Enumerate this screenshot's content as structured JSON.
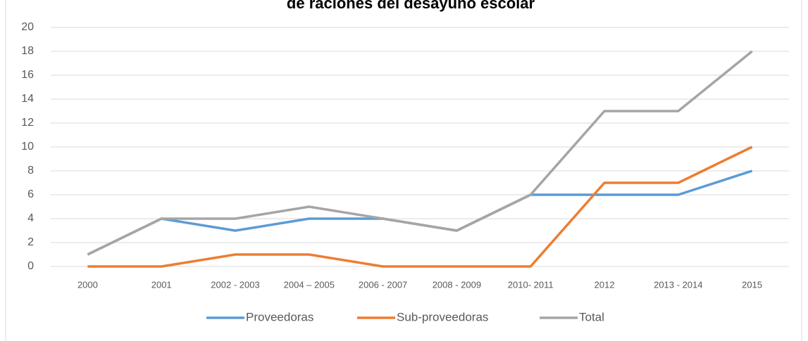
{
  "chart_data": {
    "type": "line",
    "title": "de raciones del desayuno escolar",
    "categories": [
      "2000",
      "2001",
      "2002 - 2003",
      "2004 – 2005",
      "2006 - 2007",
      "2008 - 2009",
      "2010- 2011",
      "2012",
      "2013 - 2014",
      "2015"
    ],
    "series": [
      {
        "name": "Proveedoras",
        "color": "#5b9bd5",
        "values": [
          1,
          4,
          3,
          4,
          4,
          3,
          6,
          6,
          6,
          8
        ]
      },
      {
        "name": "Sub-proveedoras",
        "color": "#ed7d31",
        "values": [
          0,
          0,
          1,
          1,
          0,
          0,
          0,
          7,
          7,
          10
        ]
      },
      {
        "name": "Total",
        "color": "#a5a5a5",
        "values": [
          1,
          4,
          4,
          5,
          4,
          3,
          6,
          13,
          13,
          18
        ]
      }
    ],
    "ylim": [
      0,
      20
    ],
    "yticks": [
      0,
      2,
      4,
      6,
      8,
      10,
      12,
      14,
      16,
      18,
      20
    ],
    "grid": true,
    "legend": "bottom"
  }
}
